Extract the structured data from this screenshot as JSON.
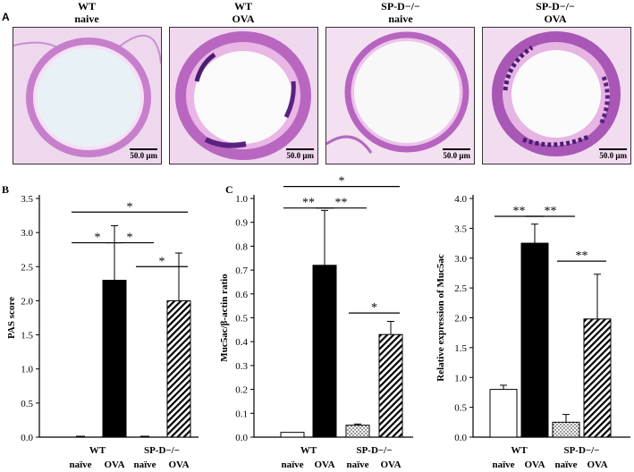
{
  "panel_a": {
    "letter": "A",
    "images": [
      {
        "title_line1": "WT",
        "title_line2": "naive",
        "scale": "50.0 μm"
      },
      {
        "title_line1": "WT",
        "title_line2": "OVA",
        "scale": "50.0 μm"
      },
      {
        "title_line1": "SP-D−/−",
        "title_line2": "naive",
        "scale": "50.0 μm"
      },
      {
        "title_line1": "SP-D−/−",
        "title_line2": "OVA",
        "scale": "50.0 μm"
      }
    ]
  },
  "chart_data": [
    {
      "panel": "B",
      "type": "bar",
      "ylabel": "PAS score",
      "ylim": [
        0,
        3.5
      ],
      "yticks": [
        "0.0",
        "0.5",
        "1.0",
        "1.5",
        "2.0",
        "2.5",
        "3.0",
        "3.5"
      ],
      "categories": [
        "naïve",
        "OVA",
        "naïve",
        "OVA"
      ],
      "groups": [
        "WT",
        "SP-D−/−"
      ],
      "values": [
        0,
        2.3,
        0,
        2.0
      ],
      "errors": [
        0,
        0.8,
        0,
        0.7
      ],
      "fills": [
        "white",
        "black",
        "dotted",
        "hatched"
      ],
      "significance": [
        {
          "from": 0,
          "to": 3,
          "label": "*",
          "y": 3.3
        },
        {
          "from": 0,
          "to": 1,
          "label": "*",
          "y": 2.85
        },
        {
          "from": 1,
          "to": 2,
          "label": "*",
          "y": 2.85
        },
        {
          "from": 2,
          "to": 3,
          "label": "*",
          "y": 2.5
        }
      ]
    },
    {
      "panel": "C",
      "type": "bar",
      "ylabel": "Muc5ac/β-actin ratio",
      "ylim": [
        0,
        1.0
      ],
      "yticks": [
        "0.0",
        "0.1",
        "0.2",
        "0.3",
        "0.4",
        "0.5",
        "0.6",
        "0.7",
        "0.8",
        "0.9",
        "1.0"
      ],
      "categories": [
        "naïve",
        "OVA",
        "naïve",
        "OVA"
      ],
      "groups": [
        "WT",
        "SP-D−/−"
      ],
      "values": [
        0.02,
        0.72,
        0.05,
        0.43
      ],
      "errors": [
        0,
        0.23,
        0.005,
        0.055
      ],
      "fills": [
        "white",
        "black",
        "dotted",
        "hatched"
      ],
      "significance": [
        {
          "from": 0,
          "to": 3,
          "label": "*",
          "y": 1.05
        },
        {
          "from": 0,
          "to": 1,
          "label": "**",
          "y": 0.96
        },
        {
          "from": 1,
          "to": 2,
          "label": "**",
          "y": 0.96
        },
        {
          "from": 2,
          "to": 3,
          "label": "*",
          "y": 0.52
        }
      ]
    },
    {
      "panel": "",
      "type": "bar",
      "ylabel": "Relative expression of Muc5ac",
      "ylim": [
        0,
        4.0
      ],
      "yticks": [
        "0.0",
        "0.5",
        "1.0",
        "1.5",
        "2.0",
        "2.5",
        "3.0",
        "3.5",
        "4.0"
      ],
      "categories": [
        "naïve",
        "OVA",
        "naïve",
        "OVA"
      ],
      "groups": [
        "WT",
        "SP-D−/−"
      ],
      "values": [
        0.8,
        3.25,
        0.25,
        1.98
      ],
      "errors": [
        0.07,
        0.32,
        0.13,
        0.75
      ],
      "fills": [
        "white",
        "black",
        "dotted",
        "hatched"
      ],
      "significance": [
        {
          "from": 0,
          "to": 1,
          "label": "**",
          "y": 3.7
        },
        {
          "from": 1,
          "to": 2,
          "label": "**",
          "y": 3.7
        },
        {
          "from": 2,
          "to": 3,
          "label": "**",
          "y": 2.95
        }
      ]
    }
  ]
}
